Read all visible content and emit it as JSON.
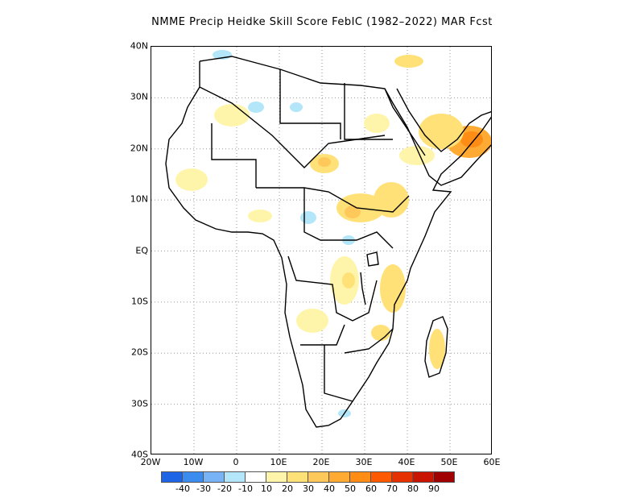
{
  "title": "NMME Precip Heidke Skill Score FebIC (1982–2022) MAR Fcst",
  "lat_labels": [
    "40N",
    "30N",
    "20N",
    "10N",
    "EQ",
    "10S",
    "20S",
    "30S",
    "40S"
  ],
  "lon_labels": [
    "20W",
    "10W",
    "0",
    "10E",
    "20E",
    "30E",
    "40E",
    "50E",
    "60E"
  ],
  "map": {
    "lat_range": [
      -40,
      40
    ],
    "lon_range": [
      -20,
      60
    ],
    "grid": "dotted"
  },
  "colorbar": {
    "colors": [
      "#1e64e6",
      "#3c8cf0",
      "#78b4f5",
      "#b4e6fa",
      "#ffffff",
      "#fff5aa",
      "#ffe178",
      "#ffc85a",
      "#ffaa32",
      "#ff8c14",
      "#ff5a00",
      "#e63200",
      "#c81400",
      "#a00000"
    ],
    "labels": [
      "-40",
      "-30",
      "-20",
      "-10",
      "10",
      "20",
      "30",
      "40",
      "50",
      "60",
      "70",
      "80",
      "90"
    ]
  }
}
